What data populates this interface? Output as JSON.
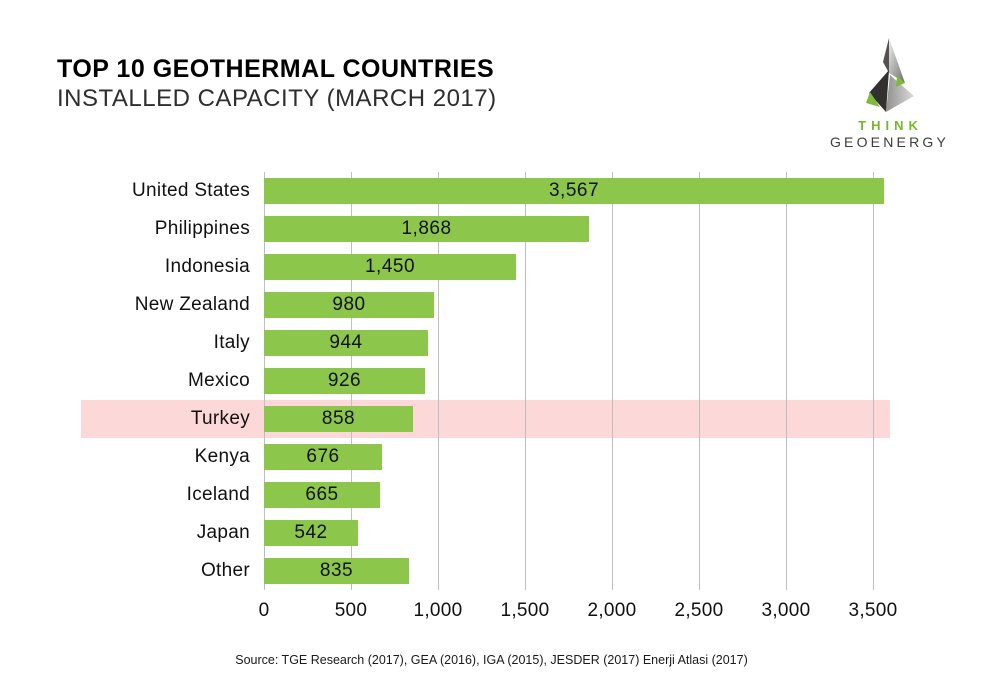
{
  "header": {
    "title": "TOP 10 GEOTHERMAL COUNTRIES",
    "subtitle": "INSTALLED CAPACITY (MARCH 2017)"
  },
  "logo": {
    "line1": "THINK",
    "line2": "GEOENERGY",
    "green": "#76B82A",
    "dark": "#3C3C3B"
  },
  "chart_data": {
    "type": "bar",
    "orientation": "horizontal",
    "title": "TOP 10 GEOTHERMAL COUNTRIES — INSTALLED CAPACITY (MARCH 2017)",
    "categories": [
      "United States",
      "Philippines",
      "Indonesia",
      "New Zealand",
      "Italy",
      "Mexico",
      "Turkey",
      "Kenya",
      "Iceland",
      "Japan",
      "Other"
    ],
    "values": [
      3567,
      1868,
      1450,
      980,
      944,
      926,
      858,
      676,
      665,
      542,
      835
    ],
    "value_labels": [
      "3,567",
      "1,868",
      "1,450",
      "980",
      "944",
      "926",
      "858",
      "676",
      "665",
      "542",
      "835"
    ],
    "xlim": [
      0,
      3600
    ],
    "ticks": [
      0,
      500,
      1000,
      1500,
      2000,
      2500,
      3000,
      3500
    ],
    "tick_labels": [
      "0",
      "500",
      "1,000",
      "1,500",
      "2,000",
      "2,500",
      "3,000",
      "3,500"
    ],
    "grid": "vertical-gridlines-only",
    "legend": "none",
    "value_label_position": "inside-center",
    "highlight_category": "Turkey",
    "highlight_index": 6,
    "bar_color": "#8CC64A",
    "highlight_band_color": "#FDD8D8",
    "gridline_color": "#BFBFBF"
  },
  "source": {
    "text": "Source: TGE Research (2017), GEA (2016), IGA (2015), JESDER (2017) Enerji Atlasi (2017)"
  }
}
